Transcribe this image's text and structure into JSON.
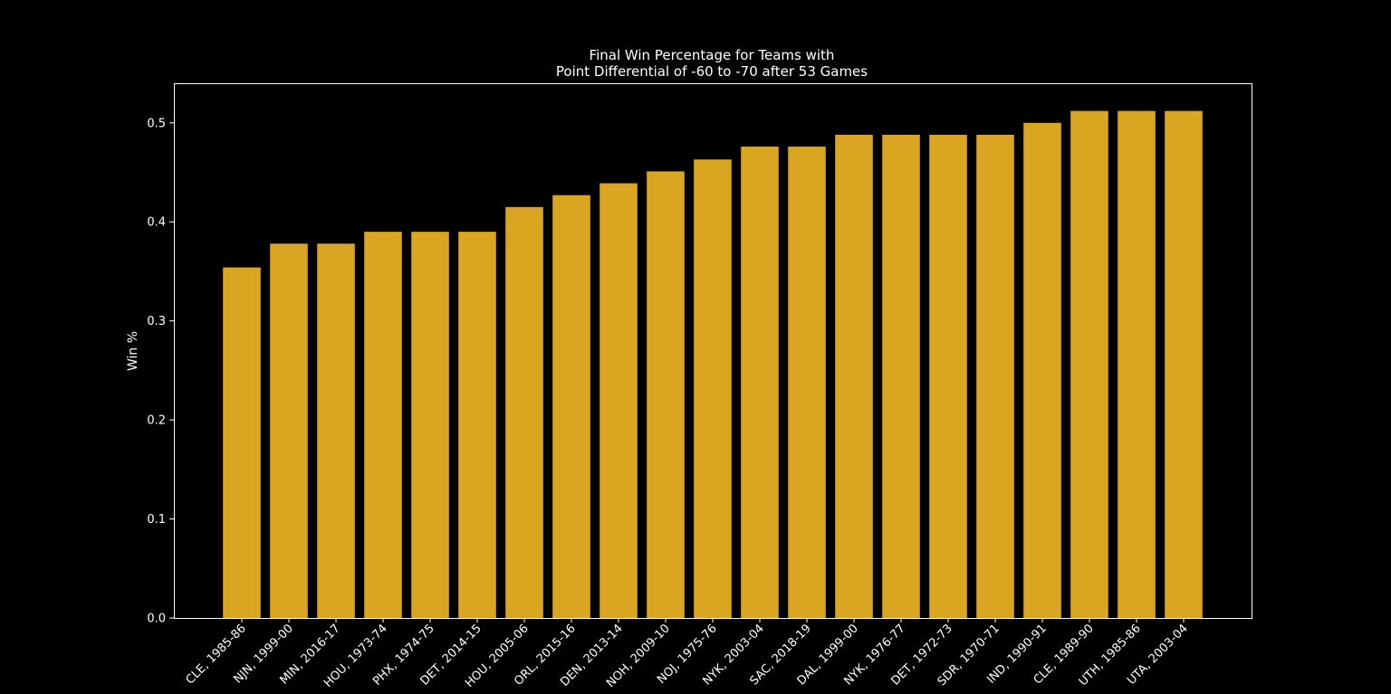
{
  "chart_data": {
    "type": "bar",
    "title_line1": "Final Win Percentage for Teams with",
    "title_line2": "Point Differential of -60 to -70 after 53 Games",
    "xlabel": "",
    "ylabel": "Win %",
    "ylim": [
      0,
      0.54
    ],
    "yticks": [
      0.0,
      0.1,
      0.2,
      0.3,
      0.4,
      0.5
    ],
    "ytick_labels": [
      "0.0",
      "0.1",
      "0.2",
      "0.3",
      "0.4",
      "0.5"
    ],
    "grid": false,
    "bar_color": "#DAA520",
    "background_color": "#000000",
    "axis_color": "#ffffff",
    "categories": [
      "CLE, 1985-86",
      "NJN, 1999-00",
      "MIN, 2016-17",
      "HOU, 1973-74",
      "PHX, 1974-75",
      "DET, 2014-15",
      "HOU, 2005-06",
      "ORL, 2015-16",
      "DEN, 2013-14",
      "NOH, 2009-10",
      "NOJ, 1975-76",
      "NYK, 2003-04",
      "SAC, 2018-19",
      "DAL, 1999-00",
      "NYK, 1976-77",
      "DET, 1972-73",
      "SDR, 1970-71",
      "IND, 1990-91",
      "CLE, 1989-90",
      "UTH, 1985-86",
      "UTA, 2003-04"
    ],
    "values": [
      0.354,
      0.378,
      0.378,
      0.39,
      0.39,
      0.39,
      0.415,
      0.427,
      0.439,
      0.451,
      0.463,
      0.476,
      0.476,
      0.488,
      0.488,
      0.488,
      0.488,
      0.5,
      0.512,
      0.512,
      0.512
    ]
  }
}
